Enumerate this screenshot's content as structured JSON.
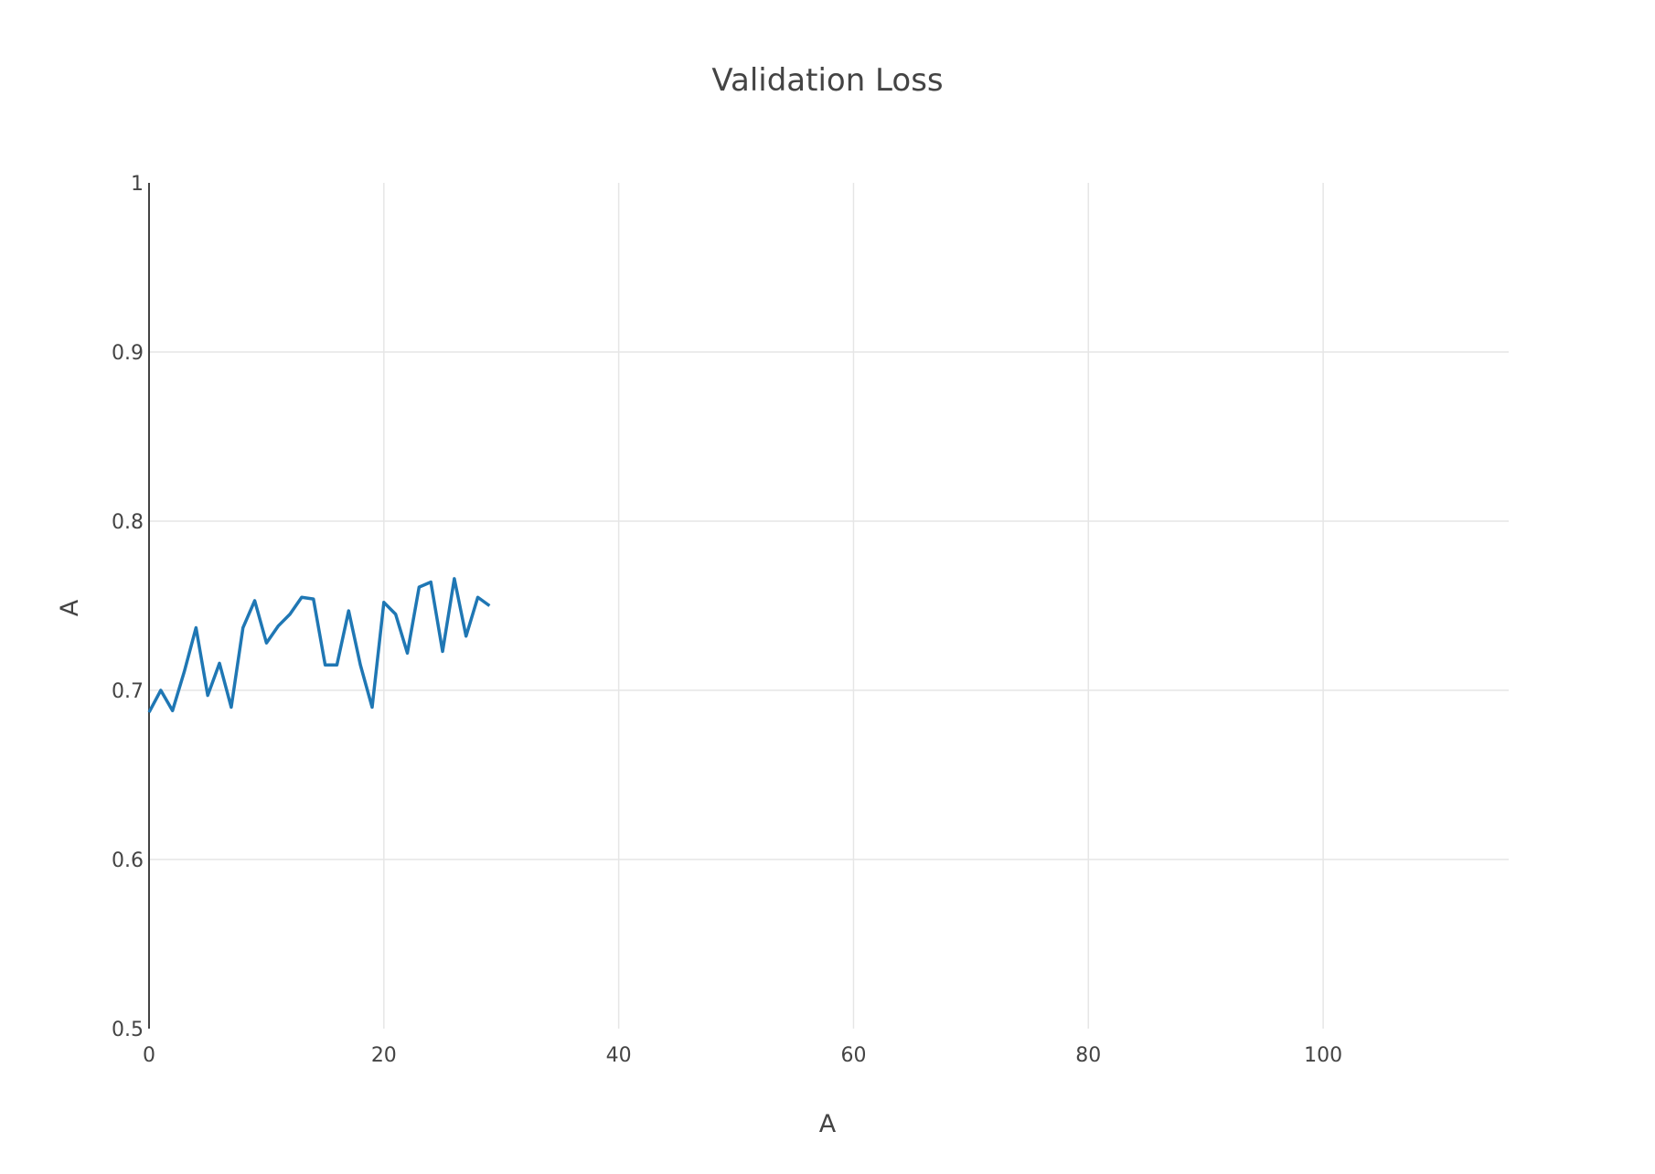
{
  "chart_data": {
    "type": "line",
    "title": "Validation Loss",
    "xlabel": "A",
    "ylabel": "A",
    "xlim": [
      0,
      115.8
    ],
    "ylim": [
      0.5,
      1.0
    ],
    "xticks": [
      0,
      20,
      40,
      60,
      80,
      100
    ],
    "xtick_labels": [
      "0",
      "20",
      "40",
      "60",
      "80",
      "100"
    ],
    "yticks": [
      0.5,
      0.6,
      0.7,
      0.8,
      0.9,
      1.0
    ],
    "ytick_labels": [
      "0.5",
      "0.6",
      "0.7",
      "0.8",
      "0.9",
      "1"
    ],
    "grid": true,
    "series": [
      {
        "color": "#1f77b4",
        "x": [
          0,
          1,
          2,
          3,
          4,
          5,
          6,
          7,
          8,
          9,
          10,
          11,
          12,
          13,
          14,
          15,
          16,
          17,
          18,
          19,
          20,
          21,
          22,
          23,
          24,
          25,
          26,
          27,
          28,
          29
        ],
        "values": [
          0.687,
          0.7,
          0.688,
          0.711,
          0.737,
          0.697,
          0.716,
          0.69,
          0.737,
          0.753,
          0.728,
          0.738,
          0.745,
          0.755,
          0.754,
          0.715,
          0.715,
          0.747,
          0.715,
          0.69,
          0.752,
          0.745,
          0.722,
          0.761,
          0.764,
          0.723,
          0.766,
          0.732,
          0.755,
          0.75
        ]
      }
    ]
  }
}
